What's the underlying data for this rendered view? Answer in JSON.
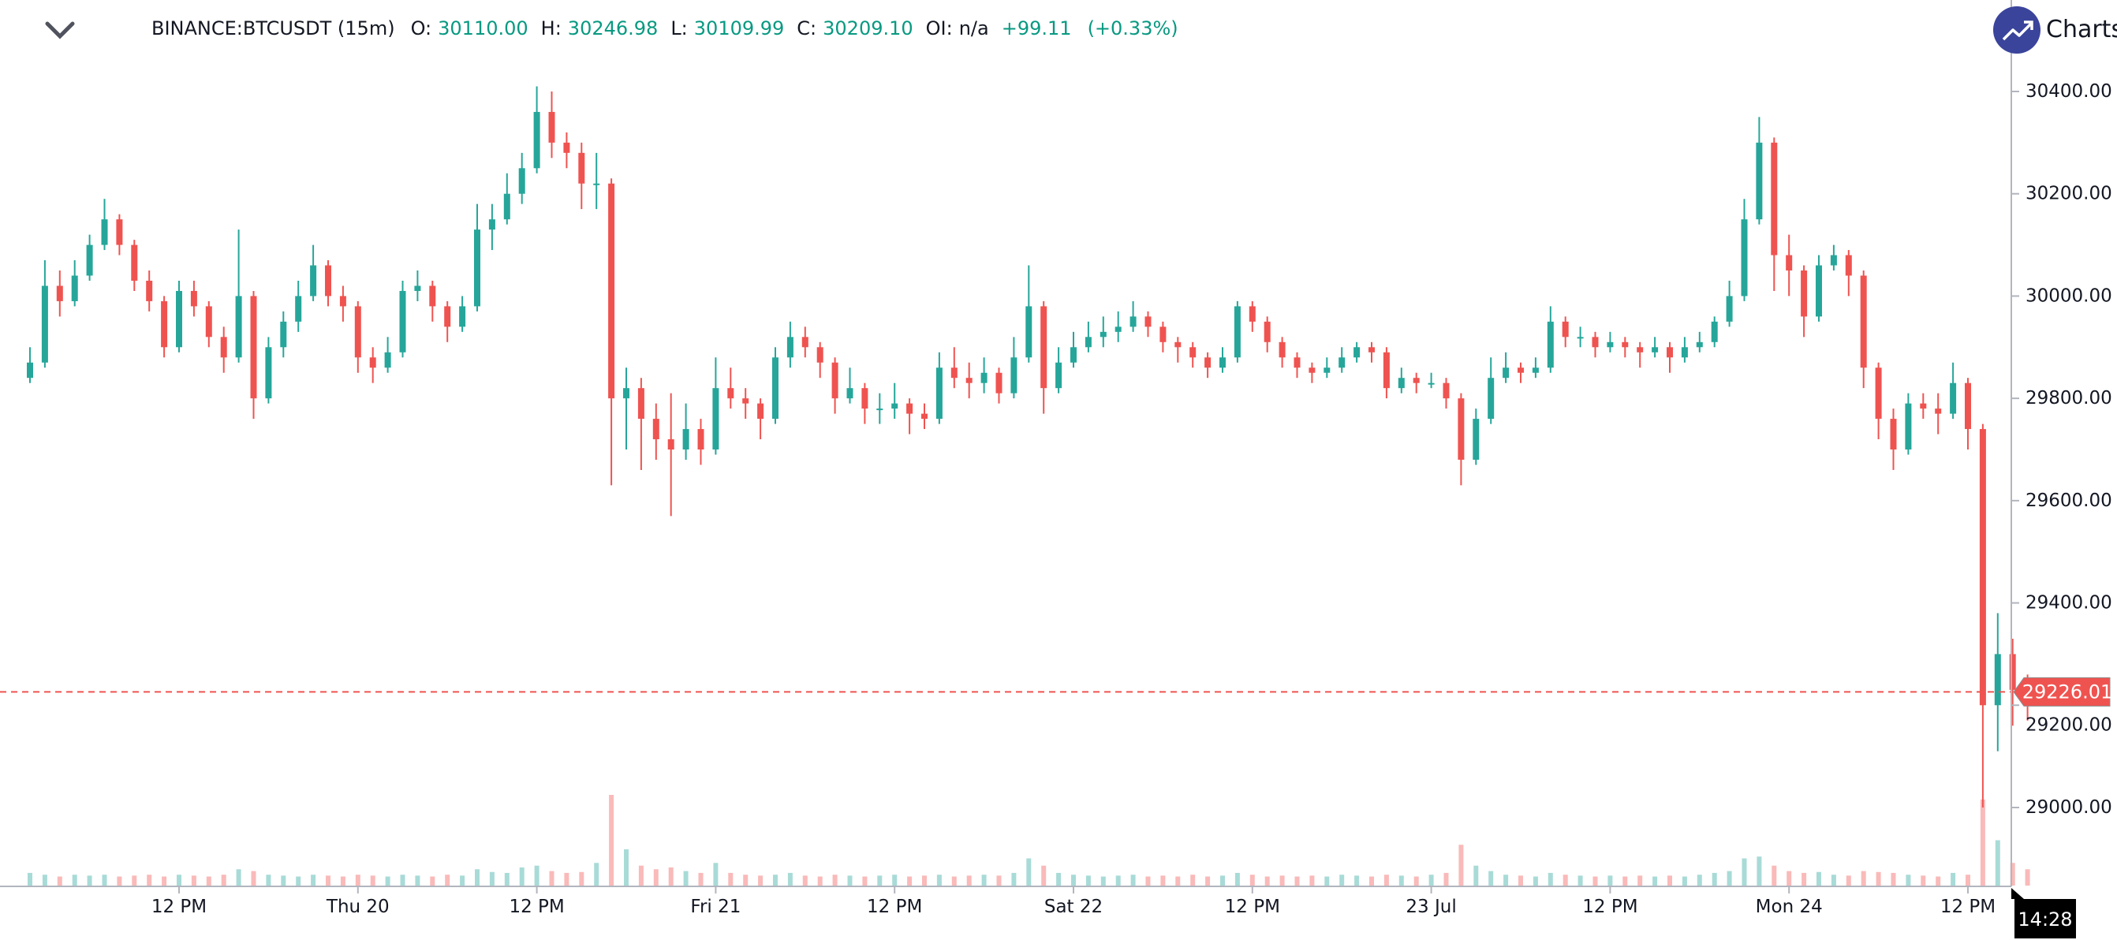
{
  "header": {
    "symbol": "BINANCE:BTCUSDT (15m)",
    "o_label": "O:",
    "o_value": "30110.00",
    "h_label": "H:",
    "h_value": "30246.98",
    "l_label": "L:",
    "l_value": "30109.99",
    "c_label": "C:",
    "c_value": "30209.10",
    "oi_label": "OI:",
    "oi_value": "n/a",
    "change": "+99.11",
    "change_pct": "(+0.33%)",
    "collapse_icon": "chevron-down-icon"
  },
  "brand": {
    "text": "Charts |",
    "icon": "trending-up-icon",
    "color": "#3a449b"
  },
  "colors": {
    "up": "#26a69a",
    "down": "#ef5350",
    "value_text": "#089981",
    "price_line": "#ef5350",
    "axis": "#b2b5be"
  },
  "chart_data": {
    "type": "candlestick",
    "title": "",
    "ylim": [
      28850,
      30480
    ],
    "y_ticks": [
      "30400.00",
      "30200.00",
      "30000.00",
      "29800.00",
      "29600.00",
      "29400.00",
      "29200.00",
      "29000.00"
    ],
    "x_ticks": [
      "12 PM",
      "Thu 20",
      "12 PM",
      "Fri 21",
      "12 PM",
      "Sat 22",
      "12 PM",
      "23 Jul",
      "12 PM",
      "Mon 24",
      "12 PM"
    ],
    "last_price": "29226.01",
    "crosshair_time": "14:28",
    "grid": false,
    "candles": [
      [
        29840,
        29900,
        29830,
        29870
      ],
      [
        29870,
        30070,
        29860,
        30020
      ],
      [
        30020,
        30050,
        29960,
        29990
      ],
      [
        29990,
        30070,
        29980,
        30040
      ],
      [
        30040,
        30120,
        30030,
        30100
      ],
      [
        30100,
        30190,
        30090,
        30150
      ],
      [
        30150,
        30160,
        30080,
        30100
      ],
      [
        30100,
        30110,
        30010,
        30030
      ],
      [
        30030,
        30050,
        29970,
        29990
      ],
      [
        29990,
        30000,
        29880,
        29900
      ],
      [
        29900,
        30030,
        29890,
        30010
      ],
      [
        30010,
        30030,
        29960,
        29980
      ],
      [
        29980,
        29990,
        29900,
        29920
      ],
      [
        29920,
        29940,
        29850,
        29880
      ],
      [
        29880,
        30130,
        29870,
        30000
      ],
      [
        30000,
        30010,
        29760,
        29800
      ],
      [
        29800,
        29920,
        29790,
        29900
      ],
      [
        29900,
        29970,
        29880,
        29950
      ],
      [
        29950,
        30030,
        29930,
        30000
      ],
      [
        30000,
        30100,
        29990,
        30060
      ],
      [
        30060,
        30070,
        29980,
        30000
      ],
      [
        30000,
        30020,
        29950,
        29980
      ],
      [
        29980,
        29990,
        29850,
        29880
      ],
      [
        29880,
        29900,
        29830,
        29860
      ],
      [
        29860,
        29920,
        29850,
        29890
      ],
      [
        29890,
        30030,
        29880,
        30010
      ],
      [
        30010,
        30050,
        29990,
        30020
      ],
      [
        30020,
        30030,
        29950,
        29980
      ],
      [
        29980,
        29990,
        29910,
        29940
      ],
      [
        29940,
        30000,
        29930,
        29980
      ],
      [
        29980,
        30180,
        29970,
        30130
      ],
      [
        30130,
        30180,
        30090,
        30150
      ],
      [
        30150,
        30240,
        30140,
        30200
      ],
      [
        30200,
        30280,
        30180,
        30250
      ],
      [
        30250,
        30410,
        30240,
        30360
      ],
      [
        30360,
        30400,
        30270,
        30300
      ],
      [
        30300,
        30320,
        30250,
        30280
      ],
      [
        30280,
        30300,
        30170,
        30220
      ],
      [
        30220,
        30280,
        30170,
        30220
      ],
      [
        30220,
        30230,
        29630,
        29800
      ],
      [
        29800,
        29860,
        29700,
        29820
      ],
      [
        29820,
        29840,
        29660,
        29760
      ],
      [
        29760,
        29790,
        29680,
        29720
      ],
      [
        29720,
        29810,
        29570,
        29700
      ],
      [
        29700,
        29790,
        29680,
        29740
      ],
      [
        29740,
        29760,
        29670,
        29700
      ],
      [
        29700,
        29880,
        29690,
        29820
      ],
      [
        29820,
        29860,
        29780,
        29800
      ],
      [
        29800,
        29820,
        29760,
        29790
      ],
      [
        29790,
        29800,
        29720,
        29760
      ],
      [
        29760,
        29900,
        29750,
        29880
      ],
      [
        29880,
        29950,
        29860,
        29920
      ],
      [
        29920,
        29940,
        29880,
        29900
      ],
      [
        29900,
        29910,
        29840,
        29870
      ],
      [
        29870,
        29880,
        29770,
        29800
      ],
      [
        29800,
        29860,
        29790,
        29820
      ],
      [
        29820,
        29830,
        29750,
        29780
      ],
      [
        29780,
        29810,
        29750,
        29780
      ],
      [
        29780,
        29830,
        29760,
        29790
      ],
      [
        29790,
        29800,
        29730,
        29770
      ],
      [
        29770,
        29790,
        29740,
        29760
      ],
      [
        29760,
        29890,
        29750,
        29860
      ],
      [
        29860,
        29900,
        29820,
        29840
      ],
      [
        29840,
        29870,
        29800,
        29830
      ],
      [
        29830,
        29880,
        29810,
        29850
      ],
      [
        29850,
        29860,
        29790,
        29810
      ],
      [
        29810,
        29920,
        29800,
        29880
      ],
      [
        29880,
        30060,
        29870,
        29980
      ],
      [
        29980,
        29990,
        29770,
        29820
      ],
      [
        29820,
        29900,
        29810,
        29870
      ],
      [
        29870,
        29930,
        29860,
        29900
      ],
      [
        29900,
        29950,
        29890,
        29920
      ],
      [
        29920,
        29960,
        29900,
        29930
      ],
      [
        29930,
        29970,
        29910,
        29940
      ],
      [
        29940,
        29990,
        29930,
        29960
      ],
      [
        29960,
        29970,
        29920,
        29940
      ],
      [
        29940,
        29950,
        29890,
        29910
      ],
      [
        29910,
        29920,
        29870,
        29900
      ],
      [
        29900,
        29910,
        29860,
        29880
      ],
      [
        29880,
        29890,
        29840,
        29860
      ],
      [
        29860,
        29900,
        29850,
        29880
      ],
      [
        29880,
        29990,
        29870,
        29980
      ],
      [
        29980,
        29990,
        29930,
        29950
      ],
      [
        29950,
        29960,
        29890,
        29910
      ],
      [
        29910,
        29920,
        29860,
        29880
      ],
      [
        29880,
        29890,
        29840,
        29860
      ],
      [
        29860,
        29870,
        29830,
        29850
      ],
      [
        29850,
        29880,
        29840,
        29860
      ],
      [
        29860,
        29900,
        29850,
        29880
      ],
      [
        29880,
        29910,
        29870,
        29900
      ],
      [
        29900,
        29910,
        29870,
        29890
      ],
      [
        29890,
        29900,
        29800,
        29820
      ],
      [
        29820,
        29860,
        29810,
        29840
      ],
      [
        29840,
        29850,
        29810,
        29830
      ],
      [
        29830,
        29850,
        29820,
        29830
      ],
      [
        29830,
        29840,
        29780,
        29800
      ],
      [
        29800,
        29810,
        29630,
        29680
      ],
      [
        29680,
        29780,
        29670,
        29760
      ],
      [
        29760,
        29880,
        29750,
        29840
      ],
      [
        29840,
        29890,
        29830,
        29860
      ],
      [
        29860,
        29870,
        29830,
        29850
      ],
      [
        29850,
        29880,
        29840,
        29860
      ],
      [
        29860,
        29980,
        29850,
        29950
      ],
      [
        29950,
        29960,
        29900,
        29920
      ],
      [
        29920,
        29940,
        29900,
        29920
      ],
      [
        29920,
        29930,
        29880,
        29900
      ],
      [
        29900,
        29930,
        29890,
        29910
      ],
      [
        29910,
        29920,
        29880,
        29900
      ],
      [
        29900,
        29910,
        29860,
        29890
      ],
      [
        29890,
        29920,
        29880,
        29900
      ],
      [
        29900,
        29910,
        29850,
        29880
      ],
      [
        29880,
        29920,
        29870,
        29900
      ],
      [
        29900,
        29930,
        29890,
        29910
      ],
      [
        29910,
        29960,
        29900,
        29950
      ],
      [
        29950,
        30030,
        29940,
        30000
      ],
      [
        30000,
        30190,
        29990,
        30150
      ],
      [
        30150,
        30350,
        30140,
        30300
      ],
      [
        30300,
        30310,
        30010,
        30080
      ],
      [
        30080,
        30120,
        30000,
        30050
      ],
      [
        30050,
        30060,
        29920,
        29960
      ],
      [
        29960,
        30080,
        29950,
        30060
      ],
      [
        30060,
        30100,
        30050,
        30080
      ],
      [
        30080,
        30090,
        30000,
        30040
      ],
      [
        30040,
        30050,
        29820,
        29860
      ],
      [
        29860,
        29870,
        29720,
        29760
      ],
      [
        29760,
        29780,
        29660,
        29700
      ],
      [
        29700,
        29810,
        29690,
        29790
      ],
      [
        29790,
        29810,
        29760,
        29780
      ],
      [
        29780,
        29810,
        29730,
        29770
      ],
      [
        29770,
        29870,
        29760,
        29830
      ],
      [
        29830,
        29840,
        29700,
        29740
      ],
      [
        29740,
        29750,
        29000,
        29200
      ],
      [
        29200,
        29380,
        29110,
        29300
      ],
      [
        29300,
        29330,
        29160,
        29230
      ],
      [
        29230,
        29260,
        29170,
        29226.01
      ]
    ],
    "volume": [
      14,
      12,
      10,
      12,
      11,
      12,
      10,
      11,
      12,
      10,
      12,
      11,
      10,
      12,
      18,
      16,
      12,
      11,
      10,
      12,
      11,
      10,
      12,
      11,
      10,
      12,
      11,
      10,
      12,
      11,
      18,
      15,
      14,
      20,
      22,
      16,
      14,
      15,
      25,
      100,
      40,
      22,
      18,
      20,
      16,
      14,
      25,
      14,
      12,
      11,
      12,
      14,
      11,
      10,
      12,
      11,
      10,
      11,
      12,
      10,
      11,
      12,
      10,
      11,
      12,
      11,
      14,
      30,
      22,
      14,
      12,
      11,
      10,
      11,
      12,
      10,
      11,
      10,
      12,
      10,
      11,
      14,
      12,
      10,
      11,
      10,
      11,
      10,
      12,
      11,
      10,
      12,
      11,
      10,
      12,
      14,
      45,
      22,
      16,
      12,
      11,
      10,
      14,
      12,
      11,
      10,
      11,
      10,
      11,
      10,
      11,
      10,
      12,
      14,
      16,
      30,
      32,
      22,
      16,
      14,
      15,
      12,
      11,
      16,
      15,
      14,
      12,
      11,
      10,
      14,
      12,
      95,
      50,
      25,
      18
    ]
  }
}
